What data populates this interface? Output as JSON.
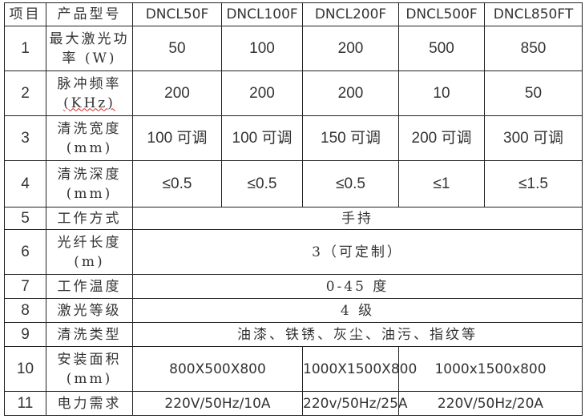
{
  "header": {
    "item": "项目",
    "model": "产品型号",
    "models": [
      "DNCL50F",
      "DNCL100F",
      "DNCL200F",
      "DNCL500F",
      "DNCL850FT"
    ]
  },
  "rows": [
    {
      "no": "1",
      "label": [
        "最大激光功",
        "率 (W)"
      ],
      "values": [
        "50",
        "100",
        "200",
        "500",
        "850"
      ]
    },
    {
      "no": "2",
      "label": [
        "脉冲频率",
        "(KHz)"
      ],
      "values": [
        "200",
        "200",
        "200",
        "10",
        "50"
      ]
    },
    {
      "no": "3",
      "label": [
        "清洗宽度",
        "(mm)"
      ],
      "values": [
        "100 可调",
        "100 可调",
        "150 可调",
        "200 可调",
        "300 可调"
      ]
    },
    {
      "no": "4",
      "label": [
        "清洗深度",
        "(mm)"
      ],
      "values": [
        "≤0.5",
        "≤0.5",
        "≤0.5",
        "≤1",
        "≤1.5"
      ]
    },
    {
      "no": "5",
      "label": [
        "工作方式"
      ],
      "value": "手持"
    },
    {
      "no": "6",
      "label": [
        "光纤长度",
        "(m)"
      ],
      "value": "3（可定制）"
    },
    {
      "no": "7",
      "label": [
        "工作温度"
      ],
      "value": "0-45 度"
    },
    {
      "no": "8",
      "label": [
        "激光等级"
      ],
      "value": "4 级"
    },
    {
      "no": "9",
      "label": [
        "清洗类型"
      ],
      "value": "油漆、铁锈、灰尘、油污、指纹等"
    },
    {
      "no": "10",
      "label": [
        "安装面积",
        "(mm)"
      ],
      "values": [
        "800X500X800",
        "1000X1500X800",
        "1000x1500x800"
      ]
    },
    {
      "no": "11",
      "label": [
        "电力需求"
      ],
      "values": [
        "220V/50Hz/10A",
        "220v/50Hz/25A",
        "220V/50Hz/20A"
      ]
    }
  ]
}
